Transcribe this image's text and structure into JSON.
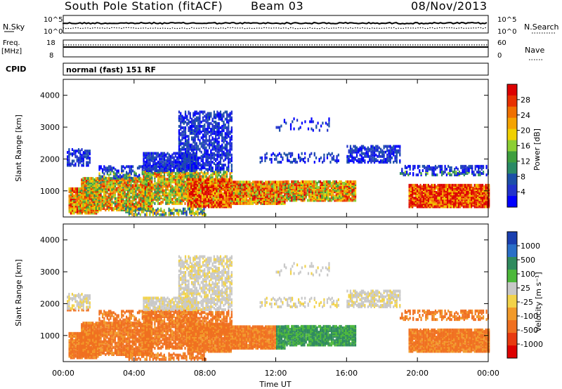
{
  "header": {
    "station": "South Pole Station (fitACF)",
    "beam": "Beam 03",
    "date": "08/Nov/2013"
  },
  "param_panel": {
    "nsky_label": "N.Sky",
    "nsky_ticks": [
      "10^5",
      "10^0"
    ],
    "nsearch_label": "N.Search",
    "nsearch_ticks": [
      "10^5",
      "10^0"
    ],
    "freq_label": "Freq.",
    "freq_unit": "[MHz]",
    "freq_ticks": [
      "18",
      "8"
    ],
    "nave_label": "Nave",
    "nave_ticks": [
      "60",
      "0"
    ],
    "cpid_label": "CPID",
    "cpid_value": "normal (fast) 151 RF"
  },
  "chart_data": [
    {
      "type": "heatmap",
      "name": "power-panel",
      "ylabel": "Slant Range [km]",
      "yticks": [
        "1000",
        "2000",
        "3000",
        "4000"
      ],
      "ylim": [
        180,
        4500
      ],
      "xlim": [
        0,
        24
      ],
      "colorbar": {
        "label": "Power [dB]",
        "ticks": [
          "4",
          "8",
          "12",
          "16",
          "20",
          "24",
          "28"
        ],
        "colors": [
          "#0000ff",
          "#2233cc",
          "#1c4fa8",
          "#2a8a66",
          "#3e9e3e",
          "#8ccf34",
          "#f0d000",
          "#f5a300",
          "#f07000",
          "#e83000",
          "#dd0000"
        ]
      }
    },
    {
      "type": "heatmap",
      "name": "velocity-panel",
      "ylabel": "Slant Range [km]",
      "yticks": [
        "1000",
        "2000",
        "3000",
        "4000"
      ],
      "ylim": [
        180,
        4500
      ],
      "xlim": [
        0,
        24
      ],
      "xlabel": "Time UT",
      "xticks": [
        "00:00",
        "04:00",
        "08:00",
        "12:00",
        "16:00",
        "20:00",
        "00:00"
      ],
      "colorbar": {
        "label": "Velocity [m s⁻¹]",
        "ticks": [
          "1000",
          "500",
          "100",
          "25",
          "-25",
          "-100",
          "-500",
          "-1000"
        ],
        "colors": [
          "#1a3fb0",
          "#2a6fc8",
          "#2f8a5e",
          "#4cb83a",
          "#c8c8c8",
          "#f2d34a",
          "#f29a2a",
          "#f07020",
          "#e83a10",
          "#dd0000"
        ]
      }
    }
  ]
}
